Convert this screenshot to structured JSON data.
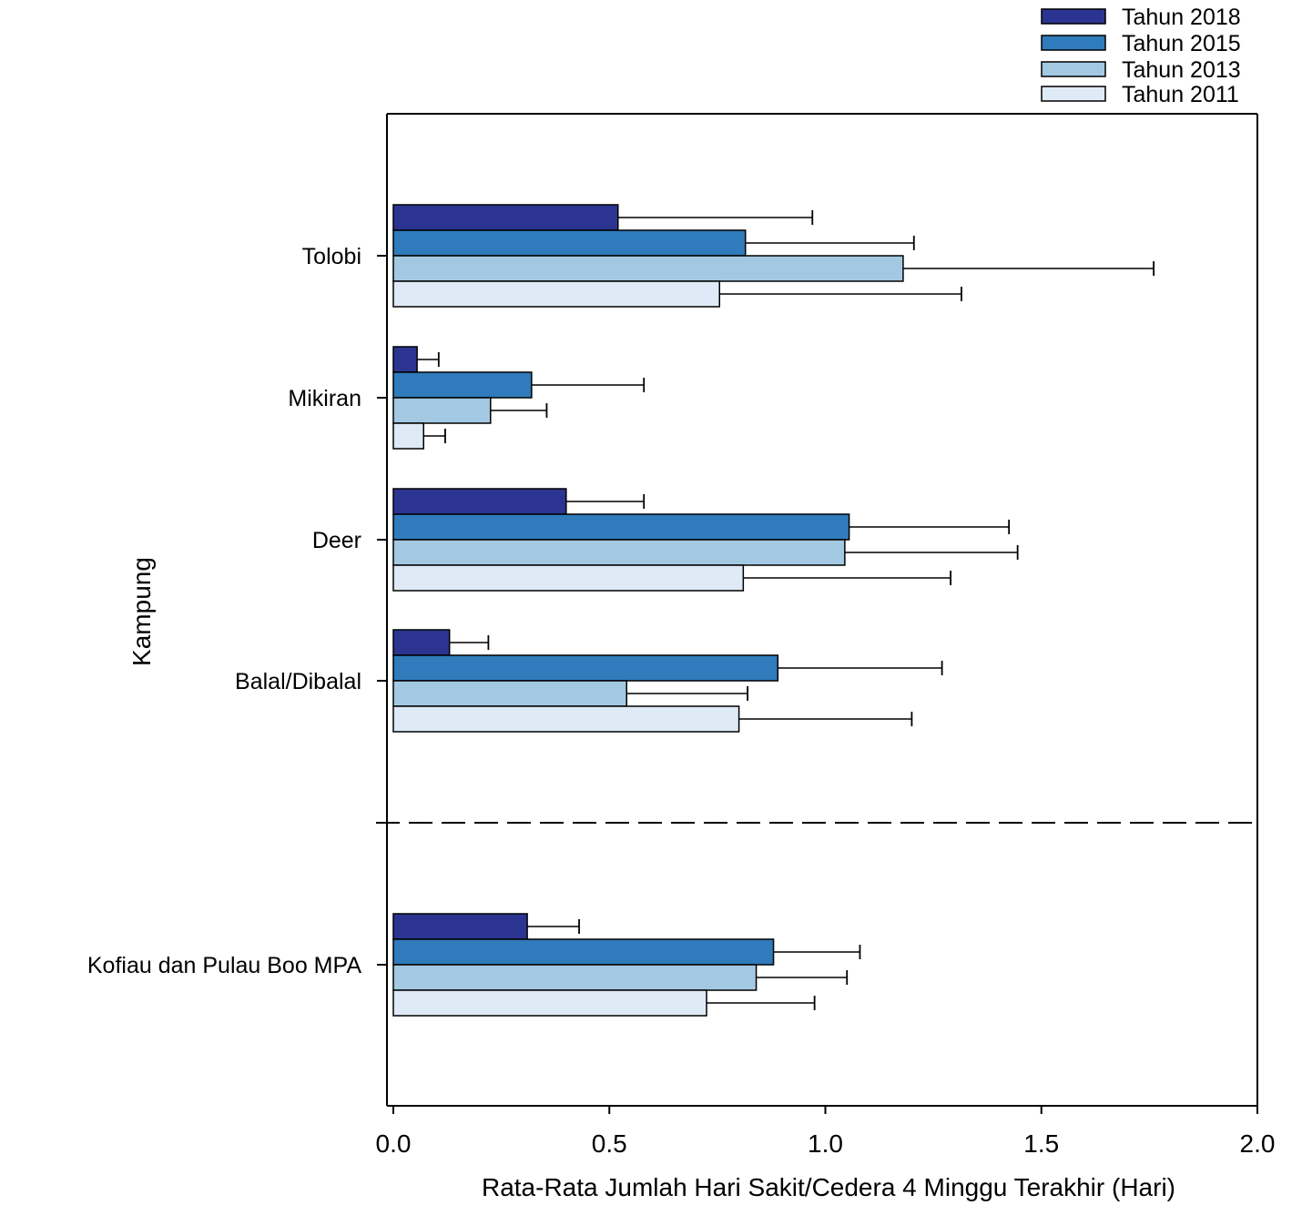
{
  "chart_data": {
    "type": "bar",
    "orientation": "horizontal",
    "xlabel": "Rata-Rata Jumlah Hari Sakit/Cedera 4 Minggu Terakhir (Hari)",
    "ylabel": "Kampung",
    "xlim": [
      0,
      2.0
    ],
    "xticks": [
      "0.0",
      "0.5",
      "1.0",
      "1.5",
      "2.0"
    ],
    "grid": false,
    "legend_position": "top-right",
    "categories": [
      "Tolobi",
      "Mikiran",
      "Deer",
      "Balal/Dibalal",
      "Kofiau dan Pulau Boo MPA"
    ],
    "separator_before_last_category": true,
    "series": [
      {
        "name": "Tahun 2018",
        "color": "#2b3591",
        "values": [
          0.52,
          0.055,
          0.4,
          0.13,
          0.31
        ],
        "errors": [
          0.45,
          0.05,
          0.18,
          0.09,
          0.12
        ]
      },
      {
        "name": "Tahun 2015",
        "color": "#2f7bbb",
        "values": [
          0.815,
          0.32,
          1.055,
          0.89,
          0.88
        ],
        "errors": [
          0.39,
          0.26,
          0.37,
          0.38,
          0.2
        ]
      },
      {
        "name": "Tahun 2013",
        "color": "#a3c9e2",
        "values": [
          1.18,
          0.225,
          1.045,
          0.54,
          0.84
        ],
        "errors": [
          0.58,
          0.13,
          0.4,
          0.28,
          0.21
        ]
      },
      {
        "name": "Tahun 2011",
        "color": "#deeaf5",
        "values": [
          0.755,
          0.07,
          0.81,
          0.8,
          0.725
        ],
        "errors": [
          0.56,
          0.05,
          0.48,
          0.4,
          0.25
        ]
      }
    ]
  }
}
